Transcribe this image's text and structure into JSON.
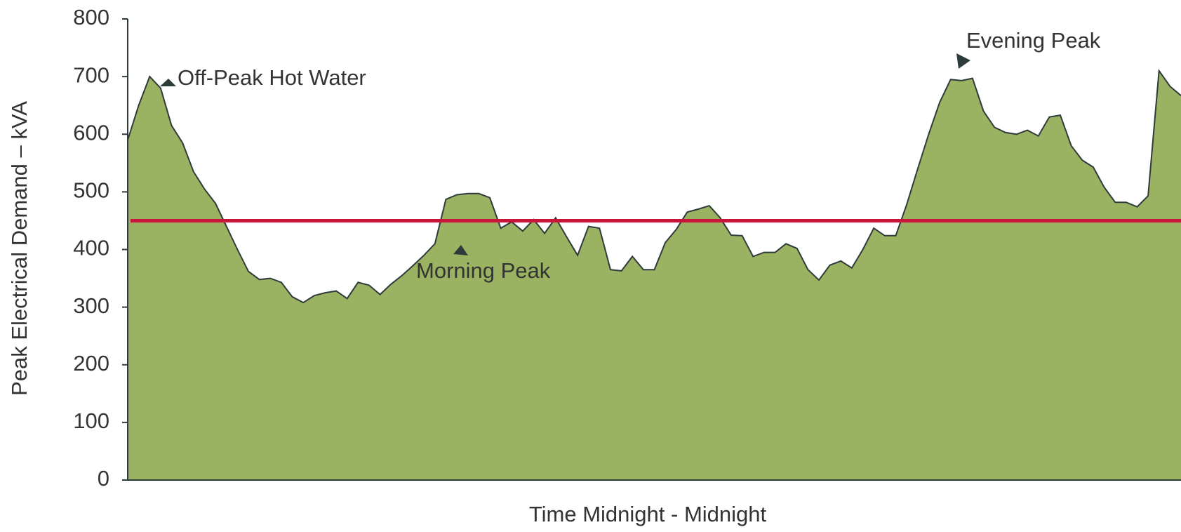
{
  "chart_data": {
    "type": "area",
    "x_label": "Time Midnight - Midnight",
    "y_label": "Peak Electrical Demand – kVA",
    "ylim": [
      0,
      800
    ],
    "yticks": [
      0,
      100,
      200,
      300,
      400,
      500,
      600,
      700,
      800
    ],
    "color": "#9bb262",
    "line_color": "#2e3b3b",
    "values": [
      590,
      650,
      700,
      680,
      615,
      585,
      535,
      505,
      480,
      440,
      400,
      362,
      348,
      350,
      343,
      318,
      308,
      320,
      325,
      328,
      315,
      343,
      338,
      322,
      340,
      355,
      372,
      390,
      410,
      487,
      495,
      497,
      497,
      490,
      437,
      448,
      432,
      452,
      428,
      455,
      422,
      390,
      440,
      437,
      365,
      363,
      388,
      365,
      365,
      412,
      435,
      465,
      470,
      476,
      455,
      425,
      424,
      388,
      395,
      395,
      410,
      402,
      365,
      347,
      373,
      380,
      368,
      400,
      437,
      424,
      424,
      478,
      540,
      600,
      655,
      695,
      693,
      697,
      640,
      612,
      603,
      600,
      607,
      597,
      630,
      633,
      580,
      555,
      543,
      508,
      482,
      482,
      474,
      493,
      710,
      683,
      667
    ],
    "reference_line": {
      "value": 450,
      "color": "#c8163a"
    },
    "annotations": [
      {
        "text": "Off-Peak Hot Water",
        "color": "#333333"
      },
      {
        "text": "Morning Peak",
        "color": "#ffffff"
      },
      {
        "text": "Evening Peak",
        "color": "#333333"
      }
    ]
  }
}
